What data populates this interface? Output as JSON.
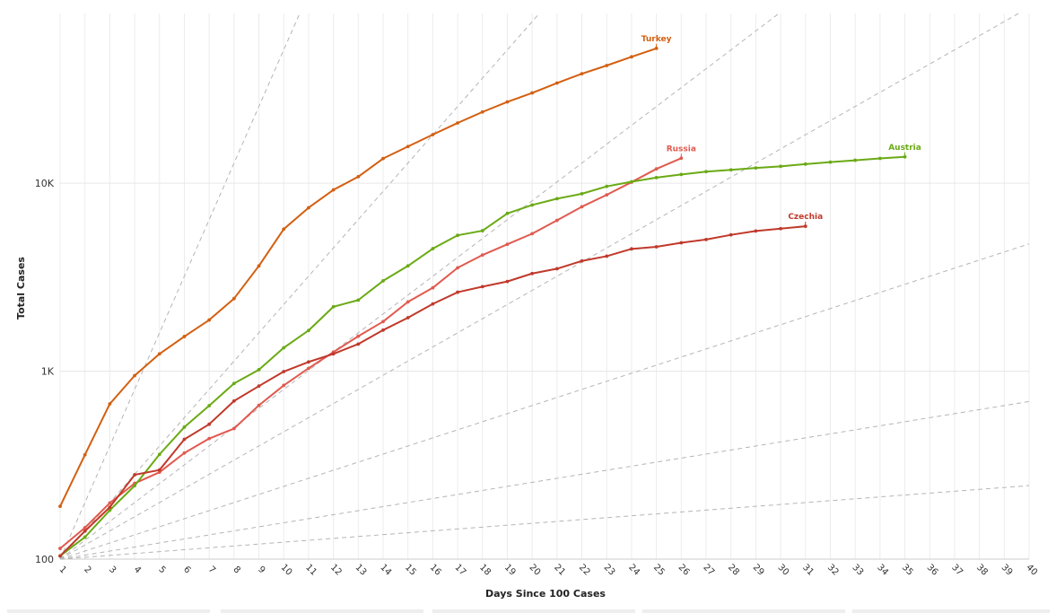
{
  "chart_data": {
    "type": "line",
    "xlabel": "Days Since 100 Cases",
    "ylabel": "Total Cases",
    "y_scale": "log",
    "xlim": [
      1,
      40
    ],
    "ylim": [
      100,
      80000
    ],
    "x_ticks": [
      "1",
      "2",
      "3",
      "4",
      "5",
      "6",
      "7",
      "8",
      "9",
      "10",
      "11",
      "12",
      "13",
      "14",
      "15",
      "16",
      "17",
      "18",
      "19",
      "20",
      "21",
      "22",
      "23",
      "24",
      "25",
      "26",
      "27",
      "28",
      "29",
      "30",
      "31",
      "32",
      "33",
      "34",
      "35",
      "36",
      "37",
      "38",
      "39",
      "40"
    ],
    "y_ticks": [
      {
        "label": "100",
        "value": 100
      },
      {
        "label": "1K",
        "value": 1000
      },
      {
        "label": "10K",
        "value": 10000
      }
    ],
    "grid": true,
    "reference_lines": {
      "style": "dashed",
      "color": "#b5b5b5",
      "doubling_days": [
        1,
        2,
        3,
        4,
        7,
        14,
        30
      ]
    },
    "series": [
      {
        "name": "Turkey",
        "color": "#d35f10",
        "x": [
          1,
          2,
          3,
          4,
          5,
          6,
          7,
          8,
          9,
          10,
          11,
          12,
          13,
          14,
          15,
          16,
          17,
          18,
          19,
          20,
          21,
          22,
          23,
          24,
          25
        ],
        "values": [
          191,
          359,
          670,
          947,
          1236,
          1529,
          1872,
          2433,
          3629,
          5698,
          7402,
          9217,
          10827,
          13531,
          15679,
          18135,
          20921,
          23934,
          27069,
          30217,
          34109,
          38226,
          42282,
          47029,
          52167
        ]
      },
      {
        "name": "Russia",
        "color": "#e05a4f",
        "x": [
          1,
          2,
          3,
          4,
          5,
          6,
          7,
          8,
          9,
          10,
          11,
          12,
          13,
          14,
          15,
          16,
          17,
          18,
          19,
          20,
          21,
          22,
          23,
          24,
          25,
          26
        ],
        "values": [
          114,
          147,
          199,
          253,
          290,
          367,
          438,
          495,
          658,
          840,
          1036,
          1264,
          1534,
          1836,
          2337,
          2777,
          3548,
          4149,
          4731,
          5389,
          6343,
          7497,
          8672,
          10131,
          11917,
          13584
        ]
      },
      {
        "name": "Austria",
        "color": "#6aaa14",
        "x": [
          1,
          2,
          3,
          4,
          5,
          6,
          7,
          8,
          9,
          10,
          11,
          12,
          13,
          14,
          15,
          16,
          17,
          18,
          19,
          20,
          21,
          22,
          23,
          24,
          25,
          26,
          27,
          28,
          29,
          30,
          31,
          32,
          33,
          34,
          35
        ],
        "values": [
          104,
          131,
          182,
          246,
          361,
          504,
          655,
          860,
          1018,
          1332,
          1646,
          2203,
          2388,
          3024,
          3631,
          4486,
          5282,
          5588,
          6909,
          7657,
          8271,
          8788,
          9618,
          10180,
          10711,
          11129,
          11524,
          11781,
          12051,
          12297,
          12639,
          12942,
          13244,
          13555,
          13806
        ]
      },
      {
        "name": "Czechia",
        "color": "#c0392b",
        "x": [
          1,
          2,
          3,
          4,
          5,
          6,
          7,
          8,
          9,
          10,
          11,
          12,
          13,
          14,
          15,
          16,
          17,
          18,
          19,
          20,
          21,
          22,
          23,
          24,
          25,
          26,
          27,
          28,
          29,
          30,
          31
        ],
        "values": [
          104,
          141,
          189,
          281,
          298,
          434,
          522,
          694,
          833,
          995,
          1120,
          1236,
          1394,
          1654,
          1925,
          2279,
          2631,
          2817,
          3001,
          3308,
          3508,
          3858,
          4091,
          4472,
          4587,
          4822,
          5017,
          5312,
          5569,
          5732,
          5902
        ]
      }
    ]
  }
}
